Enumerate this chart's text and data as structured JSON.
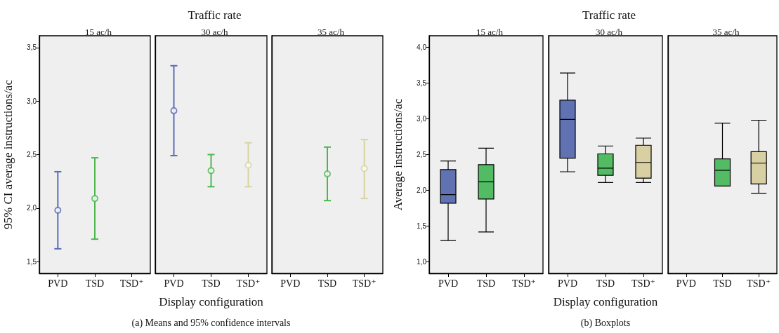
{
  "chart_data": [
    {
      "type": "scatter",
      "subtitle": "15 ac/h",
      "ylabel": "95% CI average instructions/ac",
      "categories": [
        "PVD",
        "TSD",
        "TSD⁺"
      ],
      "values": [
        1.98,
        2.09,
        null
      ],
      "errors": [
        [
          1.62,
          2.34
        ],
        [
          1.71,
          2.47
        ],
        null
      ],
      "colors": [
        "#5a6db5",
        "#4cb74f",
        null
      ],
      "marker": "circle",
      "ylim": [
        1.39,
        3.61
      ],
      "yticks": [
        {
          "value": 1.5,
          "label": "1,5"
        },
        {
          "value": 2.0,
          "label": "2,0"
        },
        {
          "value": 2.5,
          "label": "2,5"
        },
        {
          "value": 3.0,
          "label": "3,0"
        },
        {
          "value": 3.5,
          "label": "3,5"
        }
      ],
      "grid": false
    },
    {
      "type": "scatter",
      "title": "Traffic rate",
      "subtitle": "30 ac/h",
      "xlabel": "Display configuration",
      "annotations": [
        "(a) Means and 95% confidence intervals"
      ],
      "categories": [
        "PVD",
        "TSD",
        "TSD⁺"
      ],
      "values": [
        2.91,
        2.35,
        2.4
      ],
      "errors": [
        [
          2.49,
          3.33
        ],
        [
          2.2,
          2.5
        ],
        [
          2.2,
          2.61
        ]
      ],
      "colors": [
        "#5a6db5",
        "#4cb74f",
        "#d8d3a0"
      ],
      "marker": "circle",
      "ylim": [
        1.39,
        3.61
      ],
      "tick_labels": "x",
      "grid": false
    },
    {
      "type": "scatter",
      "subtitle": "35 ac/h",
      "categories": [
        "PVD",
        "TSD",
        "TSD⁺"
      ],
      "values": [
        null,
        2.32,
        2.37
      ],
      "errors": [
        null,
        [
          2.07,
          2.57
        ],
        [
          2.09,
          2.64
        ]
      ],
      "colors": [
        null,
        "#4cb74f",
        "#d8d3a0"
      ],
      "marker": "circle",
      "ylim": [
        1.39,
        3.61
      ],
      "tick_labels": "x",
      "grid": false
    },
    {
      "type": "box",
      "subtitle": "15 ac/h",
      "ylabel": "Average instructions/ac",
      "categories": [
        "PVD",
        "TSD",
        "TSD⁺"
      ],
      "colors": [
        "#6072b2",
        "#52bb64",
        null
      ],
      "boxes": [
        {
          "low": 1.3,
          "q1": 1.82,
          "median": 1.94,
          "q3": 2.29,
          "high": 2.41
        },
        {
          "low": 1.42,
          "q1": 1.88,
          "median": 2.12,
          "q3": 2.36,
          "high": 2.59
        },
        null
      ],
      "ylim": [
        0.84,
        4.16
      ],
      "yticks": [
        {
          "value": 1.0,
          "label": "1,0"
        },
        {
          "value": 1.5,
          "label": "1,5"
        },
        {
          "value": 2.0,
          "label": "2,0"
        },
        {
          "value": 2.5,
          "label": "2,5"
        },
        {
          "value": 3.0,
          "label": "3,0"
        },
        {
          "value": 3.5,
          "label": "3,5"
        },
        {
          "value": 4.0,
          "label": "4,0"
        }
      ],
      "grid": false
    },
    {
      "type": "box",
      "title": "Traffic rate",
      "subtitle": "30 ac/h",
      "xlabel": "Display configuration",
      "annotations": [
        "(b) Boxplots"
      ],
      "categories": [
        "PVD",
        "TSD",
        "TSD⁺"
      ],
      "colors": [
        "#6072b2",
        "#52bb64",
        "#d8d0a2"
      ],
      "boxes": [
        {
          "low": 2.26,
          "q1": 2.45,
          "median": 2.99,
          "q3": 3.26,
          "high": 3.64
        },
        {
          "low": 2.11,
          "q1": 2.21,
          "median": 2.31,
          "q3": 2.51,
          "high": 2.62
        },
        {
          "low": 2.11,
          "q1": 2.17,
          "median": 2.39,
          "q3": 2.63,
          "high": 2.73
        }
      ],
      "ylim": [
        0.84,
        4.16
      ],
      "tick_labels": "x",
      "grid": false
    },
    {
      "type": "box",
      "subtitle": "35 ac/h",
      "categories": [
        "PVD",
        "TSD",
        "TSD⁺"
      ],
      "colors": [
        null,
        "#52bb64",
        "#d8d0a2"
      ],
      "boxes": [
        null,
        {
          "low": 2.06,
          "q1": 2.06,
          "median": 2.28,
          "q3": 2.44,
          "high": 2.94
        },
        {
          "low": 1.96,
          "q1": 2.09,
          "median": 2.38,
          "q3": 2.54,
          "high": 2.98
        }
      ],
      "ylim": [
        0.84,
        4.16
      ],
      "tick_labels": "x",
      "grid": false
    }
  ]
}
